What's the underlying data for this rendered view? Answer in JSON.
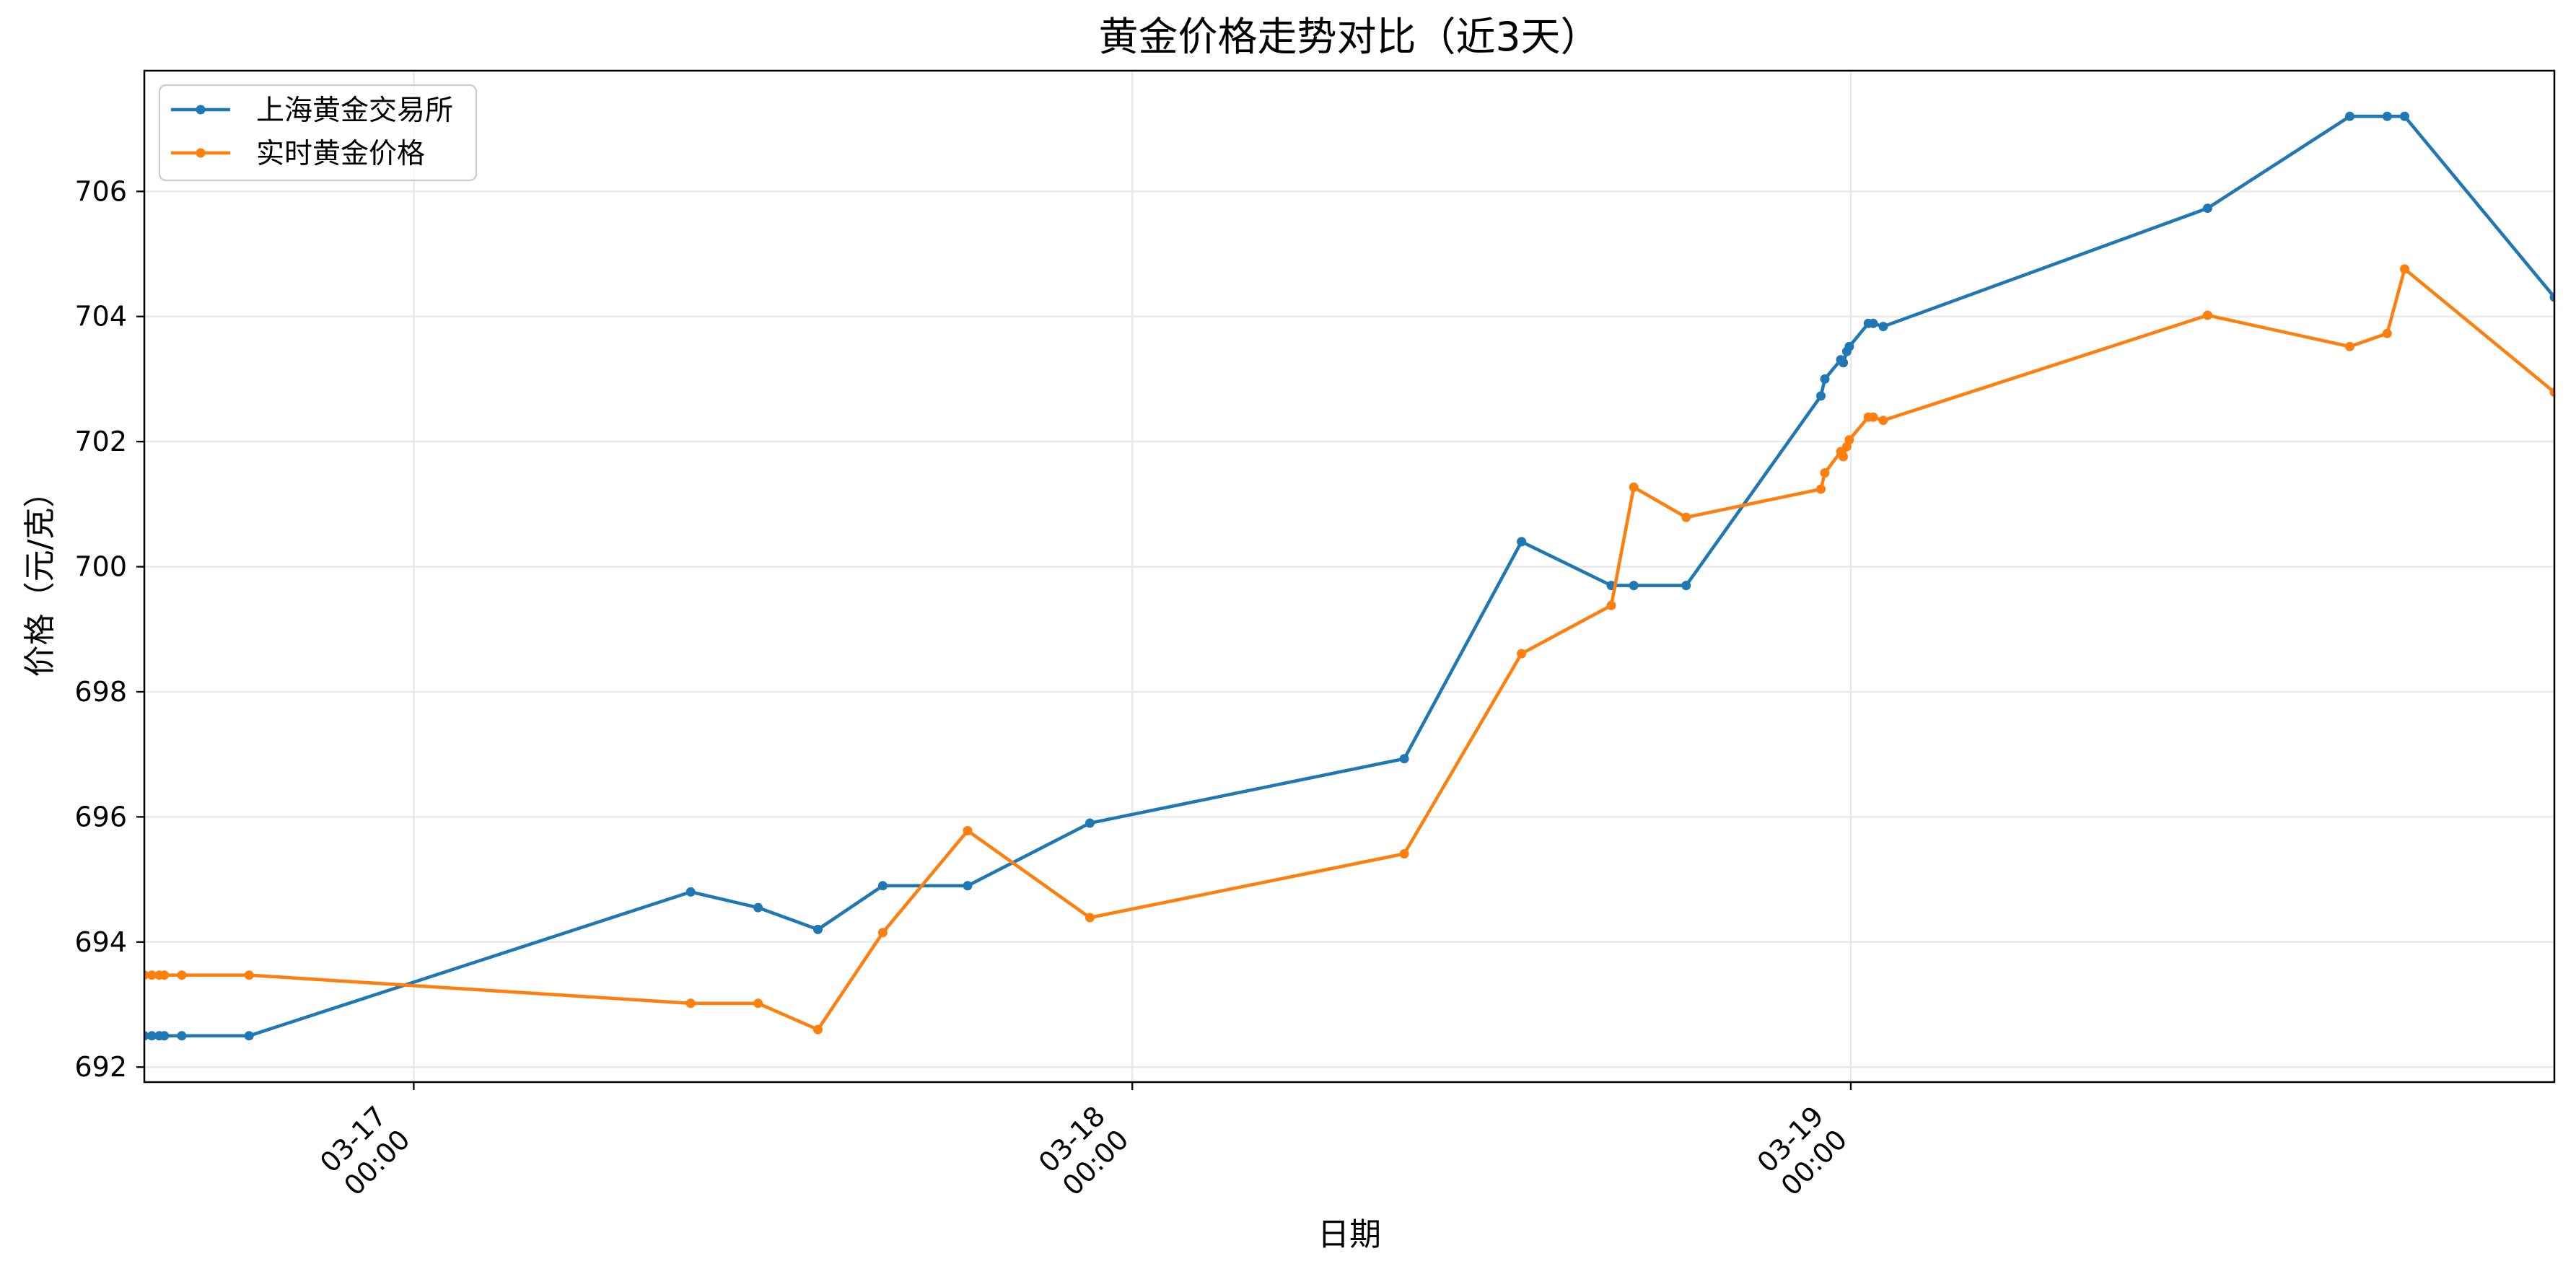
{
  "chart_data": {
    "type": "line",
    "title": "黄金价格走势对比（近3天）",
    "xlabel": "日期",
    "ylabel": "价格（元/克）",
    "x": [
      "03-16 15:00",
      "03-16 15:15",
      "03-16 15:30",
      "03-16 15:40",
      "03-16 16:15",
      "03-16 18:30",
      "03-17 09:15",
      "03-17 11:30",
      "03-17 13:30",
      "03-17 15:40",
      "03-17 18:30",
      "03-17 22:35",
      "03-18 09:05",
      "03-18 13:00",
      "03-18 16:00",
      "03-18 16:45",
      "03-18 18:30",
      "03-18 23:00",
      "03-18 23:08",
      "03-18 23:40",
      "03-18 23:45",
      "03-18 23:52",
      "03-18 23:57",
      "03-19 00:35",
      "03-19 00:45",
      "03-19 01:05",
      "03-19 11:55",
      "03-19 16:40",
      "03-19 17:55",
      "03-19 18:30",
      "03-19 23:30"
    ],
    "series": [
      {
        "name": "上海黄金交易所",
        "color": "#1f77b4",
        "values": [
          692.5,
          692.5,
          692.5,
          692.5,
          692.5,
          692.5,
          694.8,
          694.55,
          694.2,
          694.9,
          694.9,
          695.9,
          696.93,
          700.4,
          699.7,
          699.7,
          699.7,
          702.73,
          703.0,
          703.31,
          703.26,
          703.44,
          703.52,
          703.89,
          703.89,
          703.84,
          705.73,
          707.2,
          707.2,
          707.2,
          704.31
        ]
      },
      {
        "name": "实时黄金价格",
        "color": "#ff7f0e",
        "values": [
          693.47,
          693.47,
          693.47,
          693.47,
          693.47,
          693.47,
          693.02,
          693.02,
          692.6,
          694.15,
          695.78,
          694.39,
          695.41,
          698.61,
          699.38,
          701.27,
          700.79,
          701.24,
          701.5,
          701.84,
          701.76,
          701.92,
          702.03,
          702.39,
          702.39,
          702.34,
          704.02,
          703.52,
          703.73,
          704.76,
          702.79
        ]
      }
    ],
    "xlim": [
      "03-16 15:00",
      "03-19 23:30"
    ],
    "ylim": [
      691.76,
      707.93
    ],
    "xticks": [
      {
        "date": "03-17",
        "time": "00:00"
      },
      {
        "date": "03-18",
        "time": "00:00"
      },
      {
        "date": "03-19",
        "time": "00:00"
      }
    ],
    "yticks": [
      692,
      694,
      696,
      698,
      700,
      702,
      704,
      706
    ],
    "grid": true,
    "legend": "top-left"
  }
}
